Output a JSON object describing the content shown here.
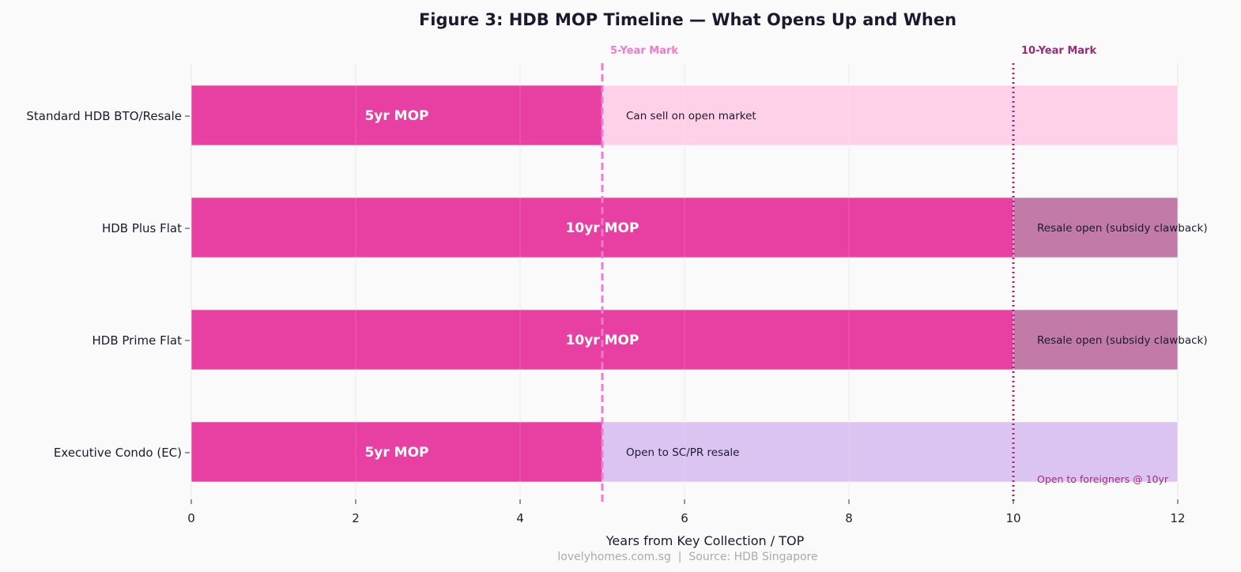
{
  "chart_data": {
    "type": "bar",
    "orientation": "horizontal",
    "stacked": true,
    "title": "Figure 3: HDB MOP Timeline — What Opens Up and When",
    "xlabel": "Years from Key Collection / TOP",
    "ylabel": "",
    "xlim": [
      0,
      12
    ],
    "xticks": [
      0,
      2,
      4,
      6,
      8,
      10,
      12
    ],
    "grid": "vertical",
    "source": "lovelyhomes.com.sg  |  Source: HDB Singapore",
    "categories": [
      "Standard HDB BTO/Resale",
      "HDB Plus Flat",
      "HDB Prime Flat",
      "Executive Condo (EC)"
    ],
    "bars": [
      {
        "category": "Standard HDB BTO/Resale",
        "segments": [
          {
            "start": 0,
            "end": 5,
            "label": "5yr MOP",
            "color": "#e83fa3"
          },
          {
            "start": 5,
            "end": 12,
            "label": "Can sell on open market",
            "color": "#ffd1e8"
          }
        ]
      },
      {
        "category": "HDB Plus Flat",
        "segments": [
          {
            "start": 0,
            "end": 10,
            "label": "10yr MOP",
            "color": "#e83fa3"
          },
          {
            "start": 10,
            "end": 12,
            "label": "Resale open (subsidy clawback)",
            "color": "#c27ba8"
          }
        ]
      },
      {
        "category": "HDB Prime Flat",
        "segments": [
          {
            "start": 0,
            "end": 10,
            "label": "10yr MOP",
            "color": "#e83fa3"
          },
          {
            "start": 10,
            "end": 12,
            "label": "Resale open (subsidy clawback)",
            "color": "#c27ba8"
          }
        ]
      },
      {
        "category": "Executive Condo (EC)",
        "segments": [
          {
            "start": 0,
            "end": 5,
            "label": "5yr MOP",
            "color": "#e83fa3"
          },
          {
            "start": 5,
            "end": 12,
            "label": "Open to SC/PR resale",
            "color": "#dcc4f2"
          }
        ],
        "note": {
          "x": 10,
          "label": "Open to foreigners @ 10yr",
          "color": "#a02d7f"
        }
      }
    ],
    "reference_lines": [
      {
        "x": 5,
        "label": "5-Year Mark",
        "style": "dashed",
        "color": "#f07ad0"
      },
      {
        "x": 10,
        "label": "10-Year Mark",
        "style": "dotted",
        "color": "#9b2a78"
      }
    ]
  }
}
